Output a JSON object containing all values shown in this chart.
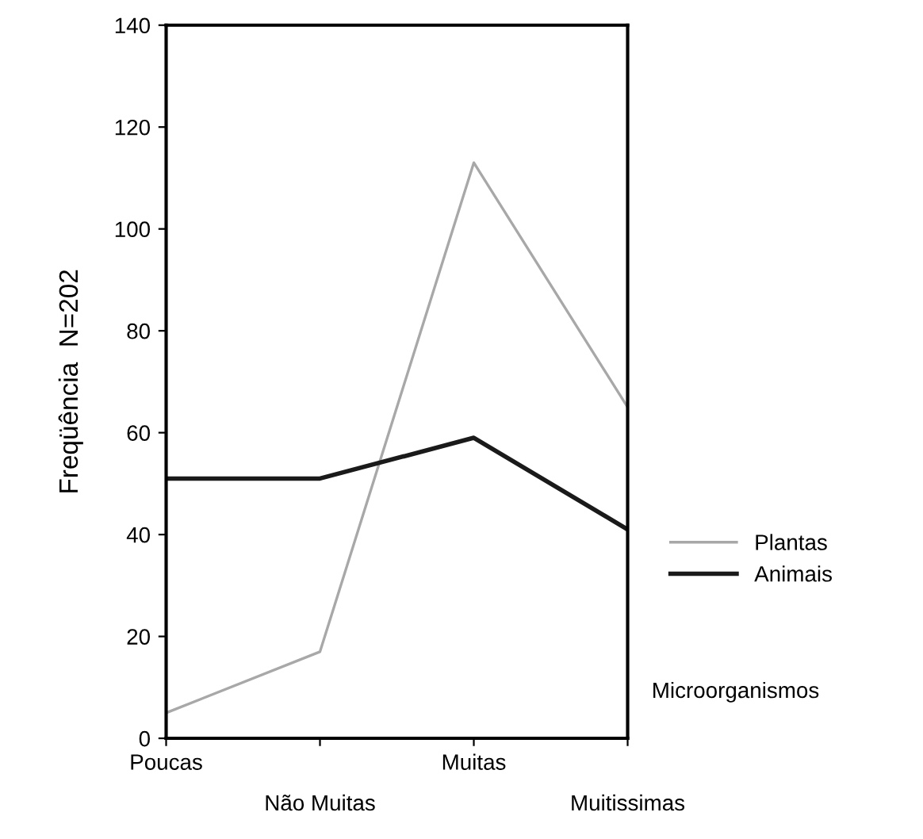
{
  "chart_data": {
    "type": "line",
    "ylabel": "Freqüência  N=202",
    "categories": [
      "Poucas",
      "Não Muitas",
      "Muitas",
      "Muitissimas"
    ],
    "series": [
      {
        "name": "Plantas",
        "color": "#a8a8a8",
        "values": [
          5,
          17,
          113,
          65
        ]
      },
      {
        "name": "Animais",
        "color": "#1a1a1a",
        "values": [
          51,
          51,
          59,
          41
        ]
      }
    ],
    "ylim": [
      0,
      140
    ],
    "yticks": [
      0,
      20,
      40,
      60,
      80,
      100,
      120,
      140
    ],
    "grid": false,
    "legend": "right",
    "marker": "none",
    "line_style": "solid",
    "annotations": [
      "Microorganismos"
    ]
  }
}
